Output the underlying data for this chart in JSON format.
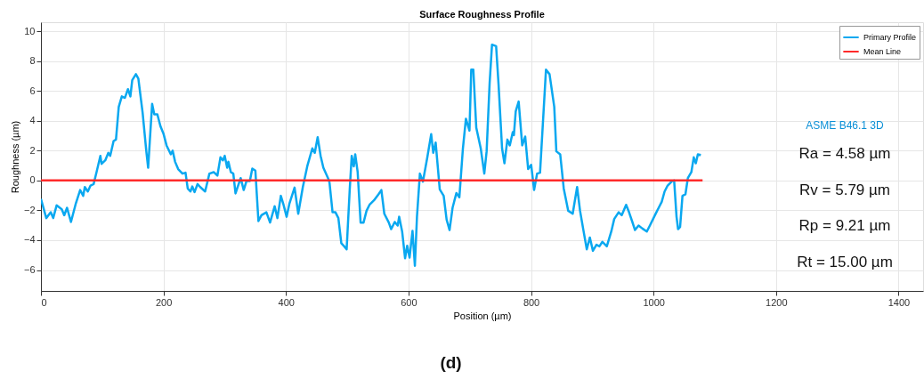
{
  "chart_data": {
    "type": "line",
    "title": "Surface Roughness Profile",
    "xlabel": "Position (µm)",
    "ylabel": "Roughness (µm)",
    "xlim": [
      0,
      1440
    ],
    "ylim": [
      -7.4,
      10.6
    ],
    "xticks": [
      0,
      200,
      400,
      600,
      800,
      1000,
      1200,
      1400
    ],
    "yticks": [
      -6,
      -4,
      -2,
      0,
      2,
      4,
      6,
      8,
      10
    ],
    "grid": true,
    "legend": "top right",
    "series": [
      {
        "name": "Primary Profile",
        "color": "#0aa8f0",
        "x": [
          0,
          8.7,
          16,
          20,
          25.6,
          34,
          38,
          42.6,
          49,
          57,
          64,
          69,
          71.6,
          76.5,
          81,
          86,
          91,
          97,
          99,
          105,
          110,
          113,
          118.6,
          122.5,
          127,
          132,
          137,
          142,
          146,
          149,
          155,
          159,
          166,
          172,
          175,
          181.5,
          185,
          190,
          195,
          200,
          205,
          212,
          215,
          219,
          224,
          231,
          236,
          239.6,
          244,
          247,
          250.8,
          255.6,
          260,
          268,
          275,
          282,
          288,
          293,
          297,
          300,
          304,
          306,
          310,
          314,
          317.6,
          326,
          331,
          335.5,
          341,
          345,
          350,
          355,
          360,
          368,
          374,
          381.5,
          386,
          391.6,
          396,
          401,
          405.7,
          414,
          420,
          427.5,
          434.7,
          443,
          447,
          451.7,
          456.5,
          461,
          468.6,
          471,
          476,
          480.7,
          485.5,
          490.3,
          495,
          499,
          504,
          507.3,
          510.7,
          513,
          517,
          521.8,
          526.6,
          531.5,
          536.3,
          543.6,
          550.9,
          555.7,
          560.5,
          567.8,
          571.7,
          577.5,
          582.3,
          584.7,
          589.6,
          594.4,
          597.8,
          601.7,
          606.5,
          610.4,
          613.8,
          618.6,
          623.5,
          630.7,
          637,
          640.4,
          644.3,
          651,
          657.4,
          662.2,
          667,
          671.9,
          678.2,
          683,
          688.8,
          693.7,
          699.5,
          702.4,
          705.8,
          710.6,
          717.9,
          723.7,
          727.5,
          732.4,
          736.3,
          743,
          747,
          752.7,
          756.6,
          761.4,
          765.3,
          770.2,
          772,
          775,
          779.8,
          785.6,
          790.5,
          795.3,
          800.2,
          805,
          809.9,
          814.7,
          824.4,
          830.2,
          837.9,
          841.3,
          847.6,
          853.4,
          860.7,
          868,
          875.2,
          880,
          885,
          891,
          896,
          901,
          906.8,
          911.6,
          916.5,
          923.7,
          931,
          935.8,
          943,
          948,
          955.2,
          960,
          964.9,
          969.7,
          975.5,
          981.8,
          989,
          994,
          1001,
          1004.6,
          1008.4,
          1013.3,
          1018,
          1023,
          1030.2,
          1033.6,
          1037.5,
          1040,
          1043.3,
          1047.2,
          1052,
          1056,
          1061.7,
          1065.6,
          1069,
          1072.3,
          1077.2
        ],
        "values": [
          -1.23,
          -2.52,
          -2.13,
          -2.52,
          -1.67,
          -1.93,
          -2.33,
          -1.83,
          -2.78,
          -1.53,
          -0.64,
          -1.03,
          -0.44,
          -0.74,
          -0.34,
          -0.24,
          0.6,
          1.65,
          1.11,
          1.35,
          1.85,
          1.65,
          2.64,
          2.74,
          4.93,
          5.63,
          5.53,
          6.12,
          5.63,
          6.72,
          7.12,
          6.82,
          4.53,
          1.95,
          0.85,
          5.13,
          4.43,
          4.43,
          3.64,
          3.14,
          2.35,
          1.75,
          2.0,
          1.25,
          0.76,
          0.46,
          0.52,
          -0.54,
          -0.74,
          -0.4,
          -0.78,
          -0.24,
          -0.44,
          -0.74,
          0.46,
          0.56,
          0.32,
          1.55,
          1.35,
          1.65,
          0.85,
          1.25,
          0.56,
          0.46,
          -0.87,
          0.16,
          -0.64,
          -0.04,
          -0.04,
          0.8,
          0.66,
          -2.72,
          -2.33,
          -2.13,
          -2.82,
          -1.73,
          -2.52,
          -1.03,
          -1.63,
          -2.43,
          -1.53,
          -0.48,
          -2.23,
          -0.44,
          0.95,
          2.15,
          1.85,
          2.9,
          1.65,
          0.85,
          0.16,
          -0.14,
          -2.13,
          -2.13,
          -2.52,
          -4.21,
          -4.41,
          -4.61,
          -0.64,
          1.65,
          0.95,
          1.75,
          0.56,
          -2.82,
          -2.82,
          -2.03,
          -1.63,
          -1.33,
          -0.93,
          -0.64,
          -2.23,
          -2.82,
          -3.26,
          -2.78,
          -3.02,
          -2.43,
          -3.42,
          -5.21,
          -4.37,
          -5.17,
          -3.38,
          -5.71,
          -2.43,
          0.46,
          -0.08,
          1.55,
          3.1,
          1.85,
          2.54,
          -0.6,
          -1.03,
          -2.62,
          -3.32,
          -1.83,
          -0.84,
          -1.13,
          2.15,
          4.14,
          3.34,
          7.42,
          7.42,
          3.54,
          2.15,
          0.46,
          1.95,
          6.52,
          9.1,
          9.0,
          6.42,
          2.15,
          1.15,
          2.74,
          2.35,
          3.24,
          3.04,
          4.63,
          5.29,
          2.35,
          2.94,
          0.76,
          1.05,
          -0.64,
          0.46,
          0.52,
          7.42,
          7.12,
          4.93,
          1.95,
          1.75,
          -0.54,
          -2.03,
          -2.23,
          -0.44,
          -2.03,
          -3.22,
          -4.61,
          -3.82,
          -4.71,
          -4.31,
          -4.41,
          -4.11,
          -4.41,
          -3.42,
          -2.58,
          -2.13,
          -2.33,
          -1.63,
          -2.13,
          -2.72,
          -3.32,
          -3.02,
          -3.22,
          -3.42,
          -3.02,
          -2.43,
          -2.13,
          -1.83,
          -1.43,
          -0.74,
          -0.34,
          -0.04,
          0,
          -2.43,
          -3.26,
          -3.12,
          -1.03,
          -0.93,
          0.16,
          0.56,
          1.55,
          1.15,
          1.75,
          1.71
        ]
      },
      {
        "name": "Mean Line",
        "color": "#ff2a2a",
        "x": [
          0,
          1080
        ],
        "values": [
          0,
          0
        ]
      }
    ],
    "annotations": [
      "ASME B46.1 3D",
      "Ra = 4.58 µm",
      "Rv = 5.79 µm",
      "Rp = 9.21 µm",
      "Rt = 15.00 µm",
      "(d)"
    ]
  }
}
